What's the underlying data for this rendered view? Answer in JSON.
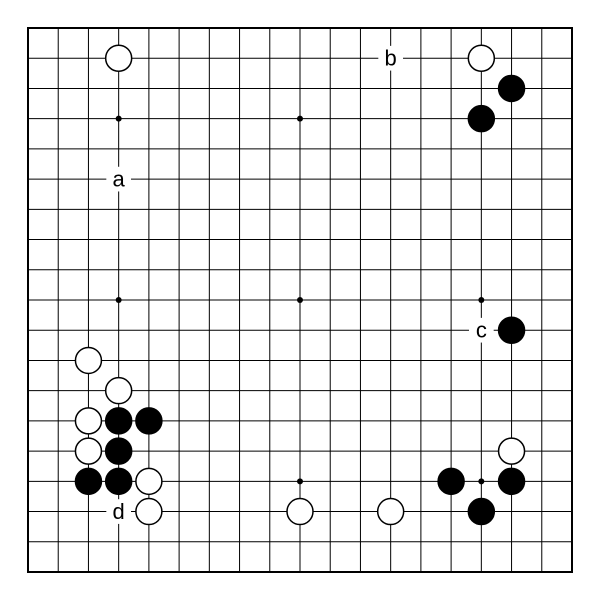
{
  "board": {
    "size": 19,
    "canvas": 600,
    "margin": 28,
    "line_color": "#000000",
    "line_width": 1,
    "border_width": 2,
    "background_color": "#ffffff",
    "star_points": [
      [
        3,
        3
      ],
      [
        3,
        9
      ],
      [
        3,
        15
      ],
      [
        9,
        3
      ],
      [
        9,
        9
      ],
      [
        9,
        15
      ],
      [
        15,
        3
      ],
      [
        15,
        9
      ],
      [
        15,
        15
      ]
    ],
    "star_radius": 3
  },
  "stones": {
    "radius": 13,
    "black_fill": "#000000",
    "white_fill": "#ffffff",
    "stroke": "#000000",
    "stroke_width": 1.5,
    "black": [
      [
        16,
        2
      ],
      [
        15,
        3
      ],
      [
        16,
        10
      ],
      [
        3,
        13
      ],
      [
        4,
        13
      ],
      [
        3,
        14
      ],
      [
        2,
        15
      ],
      [
        3,
        15
      ],
      [
        14,
        15
      ],
      [
        16,
        15
      ],
      [
        15,
        16
      ]
    ],
    "white": [
      [
        3,
        1
      ],
      [
        15,
        1
      ],
      [
        2,
        11
      ],
      [
        3,
        12
      ],
      [
        2,
        13
      ],
      [
        2,
        14
      ],
      [
        16,
        14
      ],
      [
        4,
        15
      ],
      [
        4,
        16
      ],
      [
        9,
        16
      ],
      [
        12,
        16
      ]
    ]
  },
  "labels": {
    "font_size": 22,
    "font_family": "Arial, sans-serif",
    "color": "#000000",
    "items": [
      {
        "col": 3,
        "row": 5,
        "text": "a"
      },
      {
        "col": 12,
        "row": 1,
        "text": "b"
      },
      {
        "col": 15,
        "row": 10,
        "text": "c"
      },
      {
        "col": 3,
        "row": 16,
        "text": "d"
      }
    ]
  }
}
